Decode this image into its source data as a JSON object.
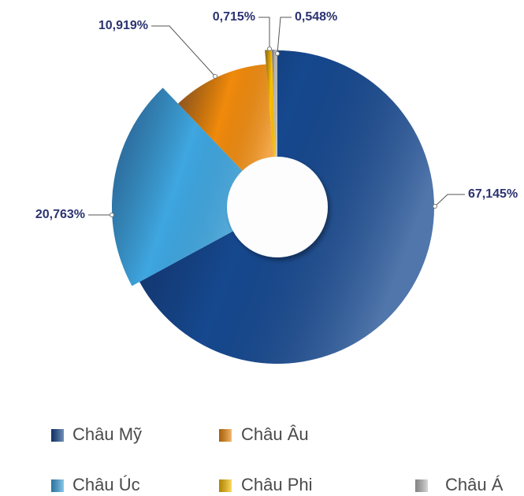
{
  "chart_data": {
    "type": "pie",
    "categories": [
      "Châu Mỹ",
      "Châu Úc",
      "Châu Âu",
      "Châu Phi",
      "Châu Á"
    ],
    "values": [
      67.145,
      20.763,
      10.919,
      0.715,
      0.548
    ],
    "value_labels": [
      "67,145%",
      "20,763%",
      "10,919%",
      "0,715%",
      "0,548%"
    ],
    "colors": [
      "#16488f",
      "#3fa6e0",
      "#f08a0c",
      "#ffc000",
      "#bdbdbd"
    ]
  }
}
